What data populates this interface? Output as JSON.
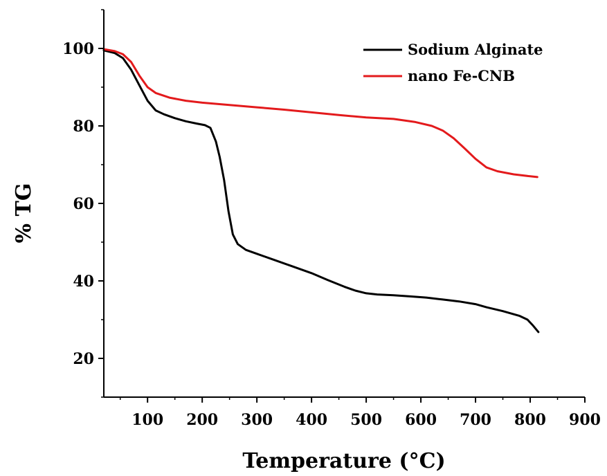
{
  "chart_data": {
    "type": "line",
    "title": "",
    "xlabel": "Temperature (°C)",
    "ylabel": "% TG",
    "xlim": [
      20,
      900
    ],
    "ylim": [
      10,
      110
    ],
    "xticks": [
      100,
      200,
      300,
      400,
      500,
      600,
      700,
      800,
      900
    ],
    "yticks": [
      20,
      40,
      60,
      80,
      100
    ],
    "grid": false,
    "legend_position": "top-right",
    "series": [
      {
        "name": "Sodium Alginate",
        "color": "#000000",
        "points": [
          [
            20,
            99.5
          ],
          [
            40,
            98.8
          ],
          [
            55,
            97.5
          ],
          [
            70,
            94.5
          ],
          [
            85,
            90.5
          ],
          [
            100,
            86.5
          ],
          [
            115,
            84
          ],
          [
            130,
            83
          ],
          [
            150,
            82
          ],
          [
            170,
            81.2
          ],
          [
            190,
            80.6
          ],
          [
            205,
            80.2
          ],
          [
            215,
            79.5
          ],
          [
            225,
            76
          ],
          [
            232,
            72
          ],
          [
            240,
            66
          ],
          [
            248,
            58
          ],
          [
            256,
            52
          ],
          [
            265,
            49.5
          ],
          [
            280,
            48
          ],
          [
            300,
            47
          ],
          [
            330,
            45.5
          ],
          [
            360,
            44
          ],
          [
            400,
            42
          ],
          [
            430,
            40.2
          ],
          [
            460,
            38.5
          ],
          [
            480,
            37.5
          ],
          [
            500,
            36.8
          ],
          [
            520,
            36.5
          ],
          [
            550,
            36.3
          ],
          [
            580,
            36
          ],
          [
            610,
            35.7
          ],
          [
            640,
            35.2
          ],
          [
            670,
            34.7
          ],
          [
            700,
            34
          ],
          [
            720,
            33.2
          ],
          [
            750,
            32.2
          ],
          [
            780,
            31
          ],
          [
            795,
            30
          ],
          [
            805,
            28.5
          ],
          [
            815,
            26.8
          ]
        ]
      },
      {
        "name": "nano Fe-CNB",
        "color": "#e31a1c",
        "points": [
          [
            20,
            99.8
          ],
          [
            40,
            99.3
          ],
          [
            55,
            98.5
          ],
          [
            70,
            96.5
          ],
          [
            85,
            93
          ],
          [
            100,
            90
          ],
          [
            115,
            88.5
          ],
          [
            140,
            87.3
          ],
          [
            170,
            86.5
          ],
          [
            200,
            86
          ],
          [
            250,
            85.4
          ],
          [
            300,
            84.8
          ],
          [
            350,
            84.2
          ],
          [
            400,
            83.5
          ],
          [
            450,
            82.8
          ],
          [
            500,
            82.2
          ],
          [
            550,
            81.8
          ],
          [
            590,
            81
          ],
          [
            620,
            80
          ],
          [
            640,
            78.8
          ],
          [
            660,
            76.8
          ],
          [
            680,
            74.2
          ],
          [
            700,
            71.5
          ],
          [
            720,
            69.3
          ],
          [
            740,
            68.3
          ],
          [
            770,
            67.5
          ],
          [
            800,
            67
          ],
          [
            813,
            66.8
          ]
        ]
      }
    ]
  }
}
